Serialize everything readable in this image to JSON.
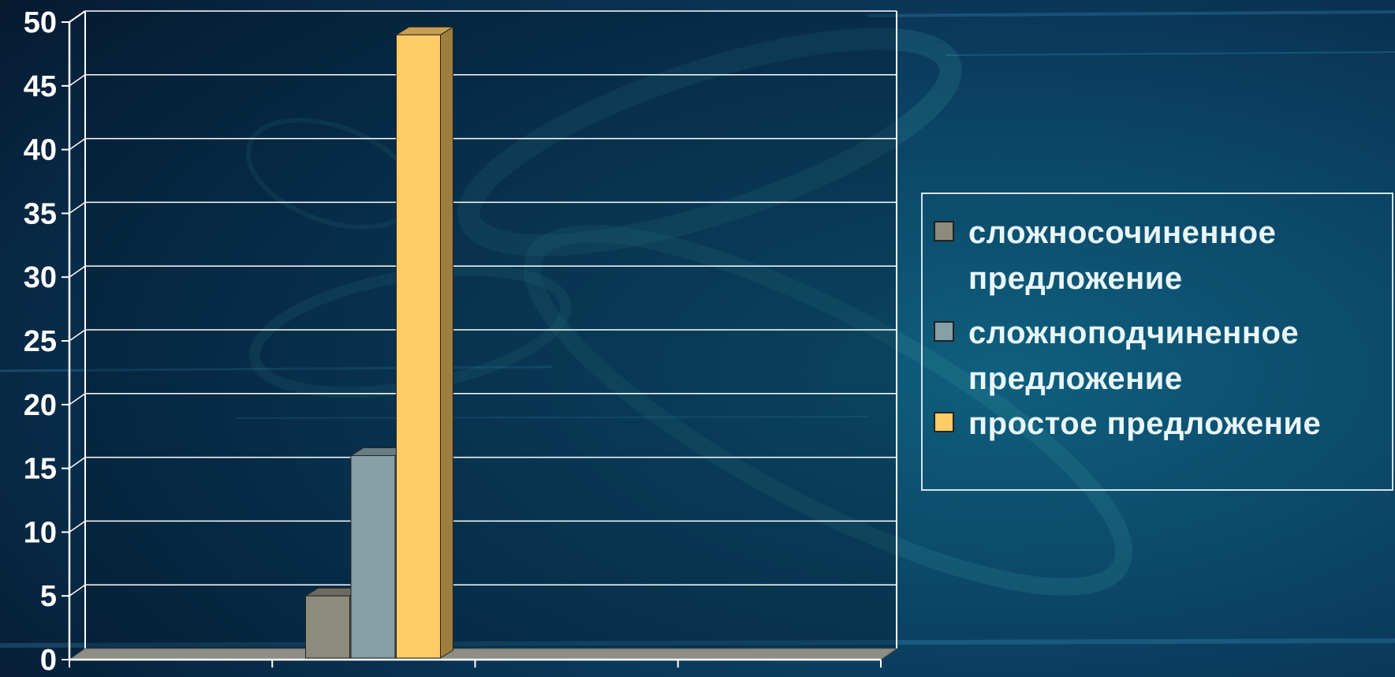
{
  "chart_data": {
    "type": "bar",
    "three_d": true,
    "categories": [
      ""
    ],
    "series": [
      {
        "name": "сложносочиненное предложение",
        "values": [
          5
        ],
        "color": "#8c8b7c"
      },
      {
        "name": "сложноподчиненное предложение",
        "values": [
          16
        ],
        "color": "#879fa6"
      },
      {
        "name": "простое предложение",
        "values": [
          49
        ],
        "color": "#ffcc66"
      }
    ],
    "ylim": [
      0,
      50
    ],
    "yticks": [
      "0",
      "5",
      "10",
      "15",
      "20",
      "25",
      "30",
      "35",
      "40",
      "45",
      "50"
    ],
    "grid": true,
    "legend_position": "right",
    "colors": {
      "grid": "#ffffff",
      "axis": "#ffffff",
      "floor": "#8e8e86",
      "background": "#07263f"
    }
  }
}
